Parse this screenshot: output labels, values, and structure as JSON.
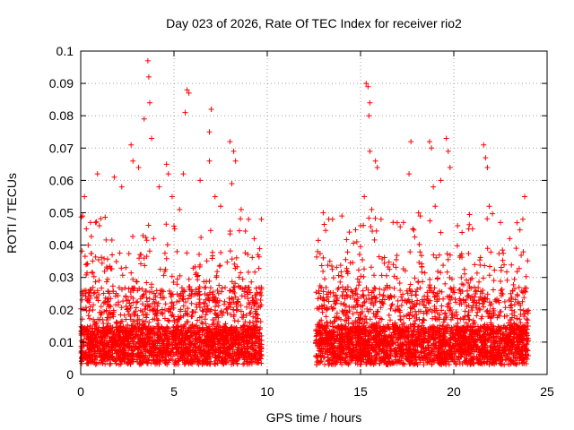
{
  "chart_data": {
    "type": "scatter",
    "title": "Day 023 of 2026, Rate Of TEC Index for receiver rio2",
    "xlabel": "GPS time / hours",
    "ylabel": "ROTI / TECUs",
    "xlim": [
      0,
      25
    ],
    "ylim": [
      0,
      0.1
    ],
    "xticks": [
      0,
      5,
      10,
      15,
      20,
      25
    ],
    "xtick_labels": [
      "0",
      "5",
      "10",
      "15",
      "20",
      "25"
    ],
    "yticks": [
      0,
      0.01,
      0.02,
      0.03,
      0.04,
      0.05,
      0.06,
      0.07,
      0.08,
      0.09,
      0.1
    ],
    "ytick_labels": [
      "0",
      "0.01",
      "0.02",
      "0.03",
      "0.04",
      "0.05",
      "0.06",
      "0.07",
      "0.08",
      "0.09",
      "0.1"
    ],
    "grid": true,
    "marker": "+",
    "color": "#ff0000",
    "series": [
      {
        "name": "ROTI",
        "segments": [
          {
            "x_start": 0.0,
            "x_end": 9.7
          },
          {
            "x_start": 12.6,
            "x_end": 24.0
          }
        ],
        "points": [
          [
            3.6,
            0.097
          ],
          [
            3.65,
            0.092
          ],
          [
            3.7,
            0.084
          ],
          [
            3.4,
            0.079
          ],
          [
            3.8,
            0.073
          ],
          [
            5.7,
            0.088
          ],
          [
            5.8,
            0.087
          ],
          [
            5.6,
            0.081
          ],
          [
            7.0,
            0.082
          ],
          [
            6.9,
            0.075
          ],
          [
            2.7,
            0.071
          ],
          [
            2.8,
            0.066
          ],
          [
            3.1,
            0.064
          ],
          [
            4.6,
            0.065
          ],
          [
            4.7,
            0.062
          ],
          [
            5.5,
            0.062
          ],
          [
            6.4,
            0.06
          ],
          [
            6.9,
            0.066
          ],
          [
            8.0,
            0.072
          ],
          [
            8.2,
            0.069
          ],
          [
            8.3,
            0.066
          ],
          [
            8.1,
            0.059
          ],
          [
            1.8,
            0.061
          ],
          [
            0.9,
            0.062
          ],
          [
            0.2,
            0.055
          ],
          [
            0.1,
            0.049
          ],
          [
            0.3,
            0.045
          ],
          [
            0.8,
            0.047
          ],
          [
            1.0,
            0.046
          ],
          [
            2.2,
            0.058
          ],
          [
            4.2,
            0.058
          ],
          [
            4.9,
            0.055
          ],
          [
            5.3,
            0.051
          ],
          [
            7.2,
            0.055
          ],
          [
            7.5,
            0.052
          ],
          [
            8.6,
            0.051
          ],
          [
            9.0,
            0.048
          ],
          [
            9.3,
            0.042
          ],
          [
            9.5,
            0.037
          ],
          [
            0.4,
            0.04
          ],
          [
            15.3,
            0.09
          ],
          [
            15.4,
            0.089
          ],
          [
            15.5,
            0.084
          ],
          [
            15.45,
            0.08
          ],
          [
            15.5,
            0.069
          ],
          [
            15.8,
            0.066
          ],
          [
            15.9,
            0.064
          ],
          [
            17.7,
            0.072
          ],
          [
            17.6,
            0.062
          ],
          [
            18.7,
            0.072
          ],
          [
            18.8,
            0.07
          ],
          [
            19.6,
            0.073
          ],
          [
            19.7,
            0.069
          ],
          [
            19.8,
            0.064
          ],
          [
            21.6,
            0.071
          ],
          [
            21.7,
            0.067
          ],
          [
            21.8,
            0.064
          ],
          [
            19.3,
            0.06
          ],
          [
            18.9,
            0.058
          ],
          [
            23.8,
            0.055
          ],
          [
            15.2,
            0.055
          ],
          [
            15.0,
            0.046
          ],
          [
            13.0,
            0.05
          ],
          [
            13.5,
            0.048
          ],
          [
            14.0,
            0.049
          ],
          [
            14.4,
            0.044
          ],
          [
            15.6,
            0.051
          ],
          [
            16.1,
            0.048
          ],
          [
            17.3,
            0.047
          ],
          [
            17.8,
            0.045
          ],
          [
            18.2,
            0.049
          ],
          [
            19.0,
            0.052
          ],
          [
            20.2,
            0.046
          ],
          [
            21.0,
            0.045
          ],
          [
            21.9,
            0.052
          ],
          [
            22.5,
            0.047
          ],
          [
            23.0,
            0.042
          ],
          [
            23.7,
            0.048
          ],
          [
            12.7,
            0.038
          ],
          [
            14.8,
            0.041
          ]
        ]
      }
    ]
  }
}
